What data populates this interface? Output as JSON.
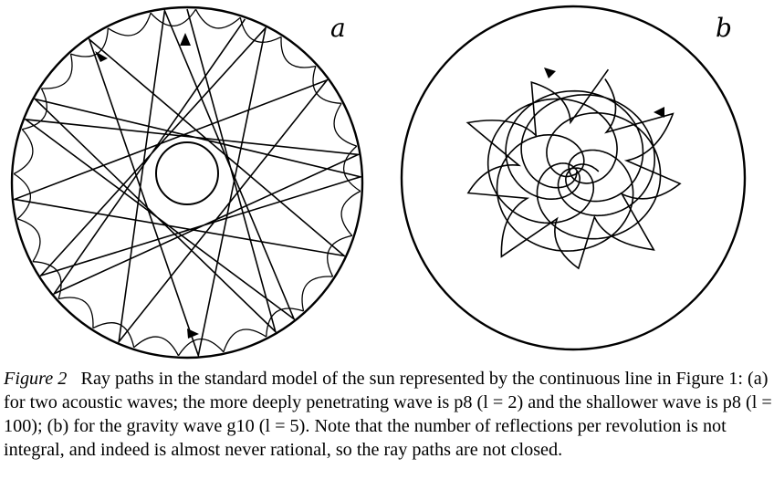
{
  "panels": [
    {
      "letter": "a"
    },
    {
      "letter": "b"
    }
  ],
  "caption": {
    "label": "Figure 2",
    "text": "Ray paths in the standard model of the sun represented by the continuous line in Figure 1: (a) for two acoustic waves; the more deeply penetrating wave is p8 (l = 2) and the shallower wave is p8 (l = 100); (b) for the gravity wave g10 (l = 5). Note that the number of reflections per revolution is not integral, and indeed is almost never rational, so the ray paths are not closed."
  }
}
